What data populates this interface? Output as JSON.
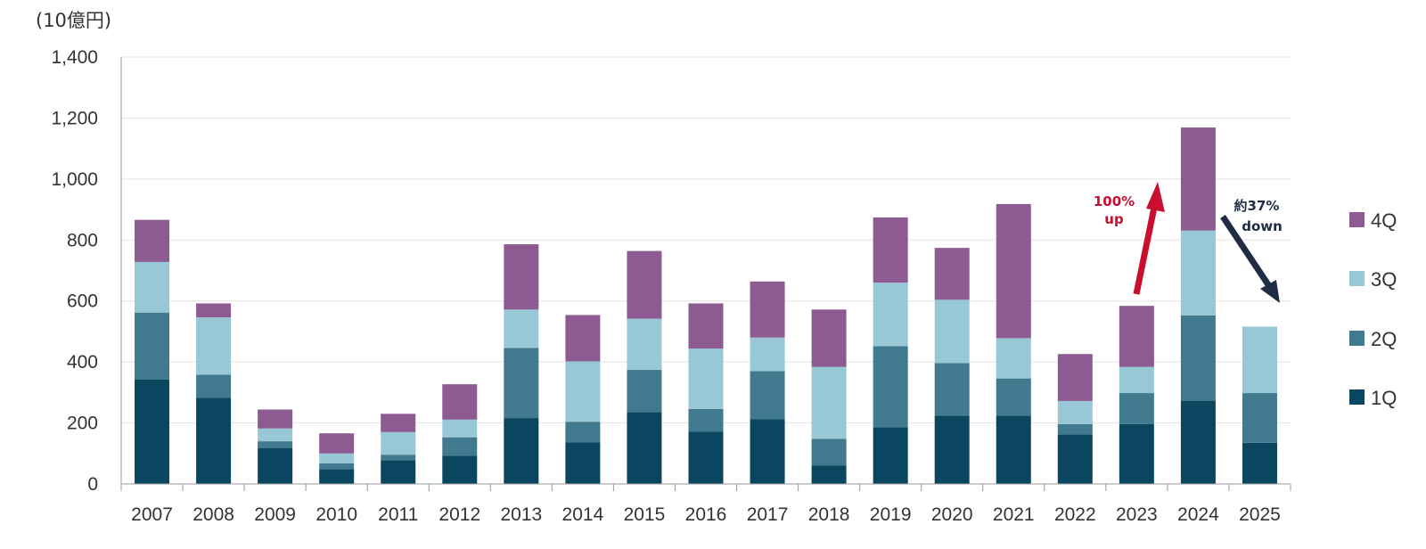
{
  "chart_data": {
    "type": "bar",
    "stacked": true,
    "title": "",
    "xlabel": "",
    "ylabel": "",
    "unit": "(10億円)",
    "ylim": [
      0,
      1400
    ],
    "yticks": [
      0,
      200,
      400,
      600,
      800,
      1000,
      1200,
      1400
    ],
    "ytick_labels": [
      "0",
      "200",
      "400",
      "600",
      "800",
      "1,000",
      "1,200",
      "1,400"
    ],
    "grid": true,
    "legend_position": "right",
    "categories": [
      "2007",
      "2008",
      "2009",
      "2010",
      "2011",
      "2012",
      "2013",
      "2014",
      "2015",
      "2016",
      "2017",
      "2018",
      "2019",
      "2020",
      "2021",
      "2022",
      "2023",
      "2024",
      "2025"
    ],
    "series": [
      {
        "name": "1Q",
        "color": "#0b4660",
        "values": [
          342,
          283,
          118,
          48,
          78,
          93,
          216,
          136,
          236,
          172,
          212,
          60,
          186,
          224,
          224,
          162,
          196,
          273,
          135
        ]
      },
      {
        "name": "2Q",
        "color": "#417a8e",
        "values": [
          220,
          75,
          22,
          20,
          18,
          60,
          230,
          68,
          138,
          74,
          158,
          88,
          266,
          172,
          122,
          34,
          102,
          280,
          163
        ]
      },
      {
        "name": "3Q",
        "color": "#98c8d6",
        "values": [
          166,
          188,
          42,
          32,
          74,
          58,
          126,
          198,
          168,
          198,
          110,
          236,
          208,
          208,
          132,
          76,
          86,
          278,
          218
        ]
      },
      {
        "name": "4Q",
        "color": "#8d5b92",
        "values": [
          138,
          46,
          62,
          66,
          60,
          116,
          214,
          152,
          222,
          148,
          184,
          188,
          214,
          170,
          440,
          154,
          200,
          338,
          0
        ]
      }
    ],
    "annotations": [
      {
        "text": "100%",
        "text2": "up",
        "color": "#c8102e"
      },
      {
        "text": "約37%",
        "text2": "down",
        "color": "#1e2d45"
      }
    ]
  }
}
